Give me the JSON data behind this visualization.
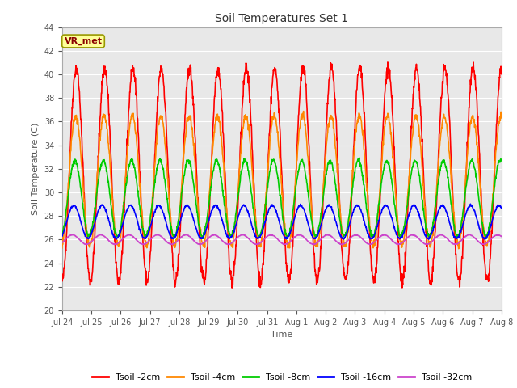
{
  "title": "Soil Temperatures Set 1",
  "xlabel": "Time",
  "ylabel": "Soil Temperature (C)",
  "ylim": [
    20,
    44
  ],
  "yticks": [
    20,
    22,
    24,
    26,
    28,
    30,
    32,
    34,
    36,
    38,
    40,
    42,
    44
  ],
  "fig_bg_color": "#ffffff",
  "plot_bg_color": "#e8e8e8",
  "annotation_text": "VR_met",
  "annotation_bg": "#ffff99",
  "annotation_edge": "#999900",
  "annotation_text_color": "#8B0000",
  "legend_entries": [
    "Tsoil -2cm",
    "Tsoil -4cm",
    "Tsoil -8cm",
    "Tsoil -16cm",
    "Tsoil -32cm"
  ],
  "line_colors": [
    "#ff0000",
    "#ff8800",
    "#00cc00",
    "#0000ff",
    "#cc44cc"
  ],
  "line_widths": [
    1.2,
    1.2,
    1.2,
    1.2,
    1.2
  ],
  "x_tick_labels": [
    "Jul 24",
    "Jul 25",
    "Jul 26",
    "Jul 27",
    "Jul 28",
    "Jul 29",
    "Jul 30",
    "Jul 31",
    "Aug 1",
    "Aug 2",
    "Aug 3",
    "Aug 4",
    "Aug 5",
    "Aug 6",
    "Aug 7",
    "Aug 8"
  ],
  "n_days": 15.5,
  "samples_per_day": 96,
  "series_params": [
    {
      "mean": 31.5,
      "amp": 9.0,
      "phase": 0.0
    },
    {
      "mean": 31.0,
      "amp": 5.5,
      "phase": 0.12
    },
    {
      "mean": 29.5,
      "amp": 3.2,
      "phase": 0.3
    },
    {
      "mean": 27.5,
      "amp": 1.4,
      "phase": 0.55
    },
    {
      "mean": 26.0,
      "amp": 0.4,
      "phase": 0.85
    }
  ]
}
